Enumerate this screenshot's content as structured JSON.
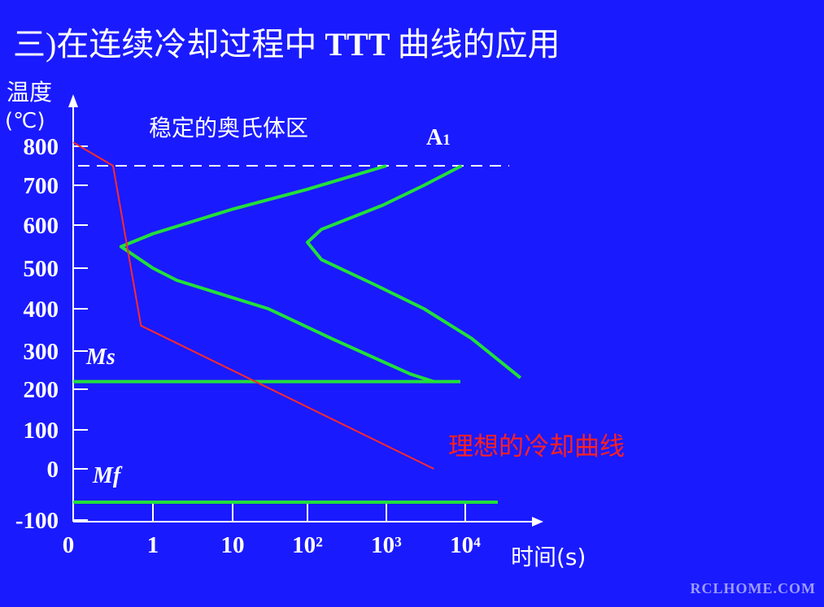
{
  "slide": {
    "title_prefix": "三)在连续冷却过程中",
    "title_bold": " TTT ",
    "title_suffix": "曲线的应用",
    "watermark": "RCLHOME.COM"
  },
  "chart_data": {
    "type": "line",
    "title": "三)在连续冷却过程中 TTT 曲线的应用",
    "ylabel_line1": "温度",
    "ylabel_line2": "(℃)",
    "xlabel": "时间(s)",
    "x_tick_labels": [
      "0",
      "1",
      "10",
      "10²",
      "10³",
      "10⁴"
    ],
    "x_tick_values": [
      0,
      1,
      10,
      100,
      1000,
      10000
    ],
    "y_tick_labels": [
      "800",
      "700",
      "600",
      "500",
      "400",
      "300",
      "200",
      "100",
      "0",
      "-100"
    ],
    "y_tick_values": [
      800,
      700,
      600,
      500,
      400,
      300,
      200,
      100,
      0,
      -100
    ],
    "ylim": [
      -100,
      800
    ],
    "x_scale": "log",
    "annotations": {
      "region": "稳定的奥氏体区",
      "A1_main": "A",
      "A1_sub": "1",
      "Ms": "Ms",
      "Mf": "Mf",
      "ideal_curve": "理想的冷却曲线"
    },
    "colors": {
      "background": "#1a1aff",
      "ttt_curves": "#22e03a",
      "cooling_curve": "#ff2a2a",
      "axis": "#ffffff"
    },
    "A1_temperature": 750,
    "Ms_temperature": 220,
    "Mf_temperature": -65,
    "series": [
      {
        "role": "transformation-start",
        "points": [
          [
            1000,
            750
          ],
          [
            100,
            690
          ],
          [
            10,
            640
          ],
          [
            1,
            580
          ],
          [
            0.6,
            550
          ],
          [
            1,
            500
          ],
          [
            2,
            470
          ],
          [
            30,
            400
          ],
          [
            200,
            330
          ],
          [
            2000,
            240
          ],
          [
            4000,
            220
          ]
        ]
      },
      {
        "role": "transformation-end",
        "points": [
          [
            9000,
            750
          ],
          [
            3000,
            700
          ],
          [
            900,
            650
          ],
          [
            150,
            590
          ],
          [
            100,
            560
          ],
          [
            150,
            520
          ],
          [
            700,
            460
          ],
          [
            3000,
            400
          ],
          [
            12000,
            330
          ],
          [
            50000,
            230
          ]
        ]
      },
      {
        "role": "ideal-cooling",
        "points": [
          [
            0,
            810
          ],
          [
            0.5,
            750
          ],
          [
            0.85,
            360
          ],
          [
            4000,
            0
          ]
        ]
      }
    ]
  }
}
